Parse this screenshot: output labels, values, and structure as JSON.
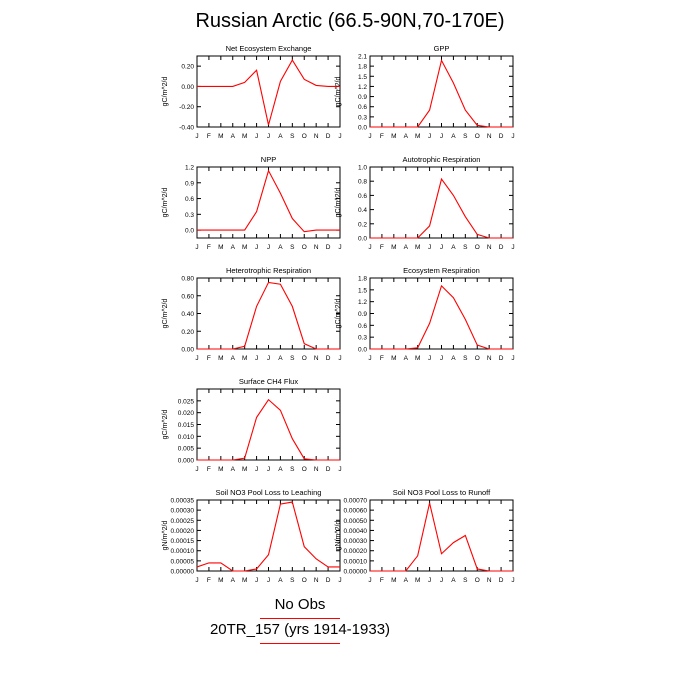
{
  "title": "Russian Arctic (66.5-90N,70-170E)",
  "legend": {
    "entries": [
      {
        "label": "No Obs",
        "color": "#ff0000"
      },
      {
        "label": "20TR_157 (yrs 1914-1933)",
        "color": "#ff0000"
      }
    ]
  },
  "chart_data": [
    {
      "type": "line",
      "title": "Net Ecosystem Exchange",
      "ylabel": "gC/m^2/d",
      "categories": [
        "J",
        "F",
        "M",
        "A",
        "M",
        "J",
        "J",
        "A",
        "S",
        "O",
        "N",
        "D",
        "J"
      ],
      "ylim": [
        -0.4,
        0.3
      ],
      "yticks": [
        "0.20",
        "0.00",
        "-0.20",
        "-0.40"
      ],
      "ytick_values": [
        0.2,
        0.0,
        -0.2,
        -0.4
      ],
      "series": [
        {
          "color": "#ff0000",
          "values": [
            0.0,
            0.0,
            0.0,
            0.0,
            0.04,
            0.16,
            -0.38,
            0.05,
            0.26,
            0.07,
            0.01,
            0.0,
            0.0
          ]
        }
      ]
    },
    {
      "type": "line",
      "title": "GPP",
      "ylabel": "gC/m^2/d",
      "categories": [
        "J",
        "F",
        "M",
        "A",
        "M",
        "J",
        "J",
        "A",
        "S",
        "O",
        "N",
        "D",
        "J"
      ],
      "ylim": [
        0,
        2.1
      ],
      "yticks": [
        "2.1",
        "1.8",
        "1.5",
        "1.2",
        "0.9",
        "0.6",
        "0.3",
        "0.0"
      ],
      "ytick_values": [
        2.1,
        1.8,
        1.5,
        1.2,
        0.9,
        0.6,
        0.3,
        0.0
      ],
      "series": [
        {
          "color": "#ff0000",
          "values": [
            0.0,
            0.0,
            0.0,
            0.0,
            0.0,
            0.5,
            1.97,
            1.3,
            0.5,
            0.05,
            0.0,
            0.0,
            0.0
          ]
        }
      ]
    },
    {
      "type": "line",
      "title": "NPP",
      "ylabel": "gC/m^2/d",
      "categories": [
        "J",
        "F",
        "M",
        "A",
        "M",
        "J",
        "J",
        "A",
        "S",
        "O",
        "N",
        "D",
        "J"
      ],
      "ylim": [
        -0.15,
        1.2
      ],
      "yticks": [
        "1.2",
        "0.9",
        "0.6",
        "0.3",
        "0.0"
      ],
      "ytick_values": [
        1.2,
        0.9,
        0.6,
        0.3,
        0.0
      ],
      "series": [
        {
          "color": "#ff0000",
          "values": [
            0.0,
            0.0,
            0.0,
            0.0,
            0.0,
            0.35,
            1.13,
            0.7,
            0.22,
            -0.03,
            0.0,
            0.0,
            0.0
          ]
        }
      ]
    },
    {
      "type": "line",
      "title": "Autotrophic Respiration",
      "ylabel": "gC/m^2/d",
      "categories": [
        "J",
        "F",
        "M",
        "A",
        "M",
        "J",
        "J",
        "A",
        "S",
        "O",
        "N",
        "D",
        "J"
      ],
      "ylim": [
        0,
        1.0
      ],
      "yticks": [
        "1.0",
        "0.8",
        "0.6",
        "0.4",
        "0.2",
        "0.0"
      ],
      "ytick_values": [
        1.0,
        0.8,
        0.6,
        0.4,
        0.2,
        0.0
      ],
      "series": [
        {
          "color": "#ff0000",
          "values": [
            0.0,
            0.0,
            0.0,
            0.0,
            0.0,
            0.17,
            0.83,
            0.6,
            0.3,
            0.05,
            0.0,
            0.0,
            0.0
          ]
        }
      ]
    },
    {
      "type": "line",
      "title": "Heterotrophic Respiration",
      "ylabel": "gC/m^2/d",
      "categories": [
        "J",
        "F",
        "M",
        "A",
        "M",
        "J",
        "J",
        "A",
        "S",
        "O",
        "N",
        "D",
        "J"
      ],
      "ylim": [
        0,
        0.8
      ],
      "yticks": [
        "0.80",
        "0.60",
        "0.40",
        "0.20",
        "0.00"
      ],
      "ytick_values": [
        0.8,
        0.6,
        0.4,
        0.2,
        0.0
      ],
      "series": [
        {
          "color": "#ff0000",
          "values": [
            0.0,
            0.0,
            0.0,
            0.0,
            0.03,
            0.48,
            0.75,
            0.73,
            0.48,
            0.06,
            0.0,
            0.0,
            0.0
          ]
        }
      ]
    },
    {
      "type": "line",
      "title": "Ecosystem Respiration",
      "ylabel": "gC/m^2/d",
      "categories": [
        "J",
        "F",
        "M",
        "A",
        "M",
        "J",
        "J",
        "A",
        "S",
        "O",
        "N",
        "D",
        "J"
      ],
      "ylim": [
        0,
        1.8
      ],
      "yticks": [
        "1.8",
        "1.5",
        "1.2",
        "0.9",
        "0.6",
        "0.3",
        "0.0"
      ],
      "ytick_values": [
        1.8,
        1.5,
        1.2,
        0.9,
        0.6,
        0.3,
        0.0
      ],
      "series": [
        {
          "color": "#ff0000",
          "values": [
            0.0,
            0.0,
            0.0,
            0.0,
            0.03,
            0.65,
            1.6,
            1.3,
            0.75,
            0.1,
            0.0,
            0.0,
            0.0
          ]
        }
      ]
    },
    {
      "type": "line",
      "title": "Surface CH4 Flux",
      "ylabel": "gC/m^2/d",
      "categories": [
        "J",
        "F",
        "M",
        "A",
        "M",
        "J",
        "J",
        "A",
        "S",
        "O",
        "N",
        "D",
        "J"
      ],
      "ylim": [
        0,
        0.03
      ],
      "yticks": [
        "0.025",
        "0.020",
        "0.015",
        "0.010",
        "0.005",
        "0.000"
      ],
      "ytick_values": [
        0.025,
        0.02,
        0.015,
        0.01,
        0.005,
        0.0
      ],
      "series": [
        {
          "color": "#ff0000",
          "values": [
            0.0,
            0.0,
            0.0,
            0.0,
            0.0008,
            0.018,
            0.0255,
            0.021,
            0.009,
            0.0005,
            0.0,
            0.0,
            0.0
          ]
        }
      ]
    },
    {
      "type": "line",
      "title": "Soil NO3 Pool Loss to Leaching",
      "ylabel": "gN/m^2/d",
      "categories": [
        "J",
        "F",
        "M",
        "A",
        "M",
        "J",
        "J",
        "A",
        "S",
        "O",
        "N",
        "D",
        "J"
      ],
      "ylim": [
        0,
        0.00035
      ],
      "yticks": [
        "0.00035",
        "0.00030",
        "0.00025",
        "0.00020",
        "0.00015",
        "0.00010",
        "0.00005",
        "0.00000"
      ],
      "ytick_values": [
        0.00035,
        0.0003,
        0.00025,
        0.0002,
        0.00015,
        0.0001,
        5e-05,
        0.0
      ],
      "series": [
        {
          "color": "#ff0000",
          "values": [
            2e-05,
            4e-05,
            4e-05,
            0.0,
            0.0,
            1e-05,
            8e-05,
            0.00033,
            0.00034,
            0.00012,
            6e-05,
            2e-05,
            2e-05
          ]
        }
      ]
    },
    {
      "type": "line",
      "title": "Soil NO3 Pool Loss to Runoff",
      "ylabel": "gN/m^2/d",
      "categories": [
        "J",
        "F",
        "M",
        "A",
        "M",
        "J",
        "J",
        "A",
        "S",
        "O",
        "N",
        "D",
        "J"
      ],
      "ylim": [
        0,
        0.0007
      ],
      "yticks": [
        "0.00070",
        "0.00060",
        "0.00050",
        "0.00040",
        "0.00030",
        "0.00020",
        "0.00010",
        "0.00000"
      ],
      "ytick_values": [
        0.0007,
        0.0006,
        0.0005,
        0.0004,
        0.0003,
        0.0002,
        0.0001,
        0.0
      ],
      "series": [
        {
          "color": "#ff0000",
          "values": [
            0.0,
            0.0,
            0.0,
            0.0,
            0.00015,
            0.00067,
            0.00017,
            0.00028,
            0.00035,
            2e-05,
            0.0,
            0.0,
            0.0
          ]
        }
      ]
    }
  ]
}
